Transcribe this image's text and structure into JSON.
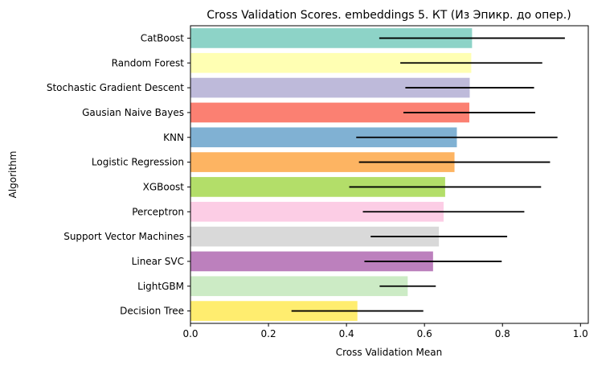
{
  "chart_data": {
    "type": "bar",
    "orientation": "horizontal",
    "title": "Cross Validation Scores. embeddings 5. КТ (Из Эпикр. до опер.)",
    "xlabel": "Cross Validation Mean",
    "ylabel": "Algorithm",
    "xlim": [
      0,
      1.02
    ],
    "xticks": [
      "0.0",
      "0.2",
      "0.4",
      "0.6",
      "0.8",
      "1.0"
    ],
    "grid": false,
    "categories": [
      "CatBoost",
      "Random Forest",
      "Stochastic Gradient Descent",
      "Gausian Naive Bayes",
      "KNN",
      "Logistic Regression",
      "XGBoost",
      "Perceptron",
      "Support Vector Machines",
      "Linear SVC",
      "LightGBM",
      "Decision Tree"
    ],
    "values": [
      0.722,
      0.72,
      0.716,
      0.715,
      0.683,
      0.677,
      0.653,
      0.649,
      0.637,
      0.622,
      0.557,
      0.428
    ],
    "error_bars": [
      0.238,
      0.182,
      0.165,
      0.169,
      0.258,
      0.245,
      0.246,
      0.207,
      0.175,
      0.176,
      0.072,
      0.169
    ],
    "colors": [
      "#8dd3c7",
      "#ffffb3",
      "#bebada",
      "#fb8072",
      "#80b1d3",
      "#fdb462",
      "#b3de69",
      "#fccde5",
      "#d9d9d9",
      "#bc80bd",
      "#ccebc5",
      "#ffed6f"
    ],
    "error_color": "#000000"
  }
}
